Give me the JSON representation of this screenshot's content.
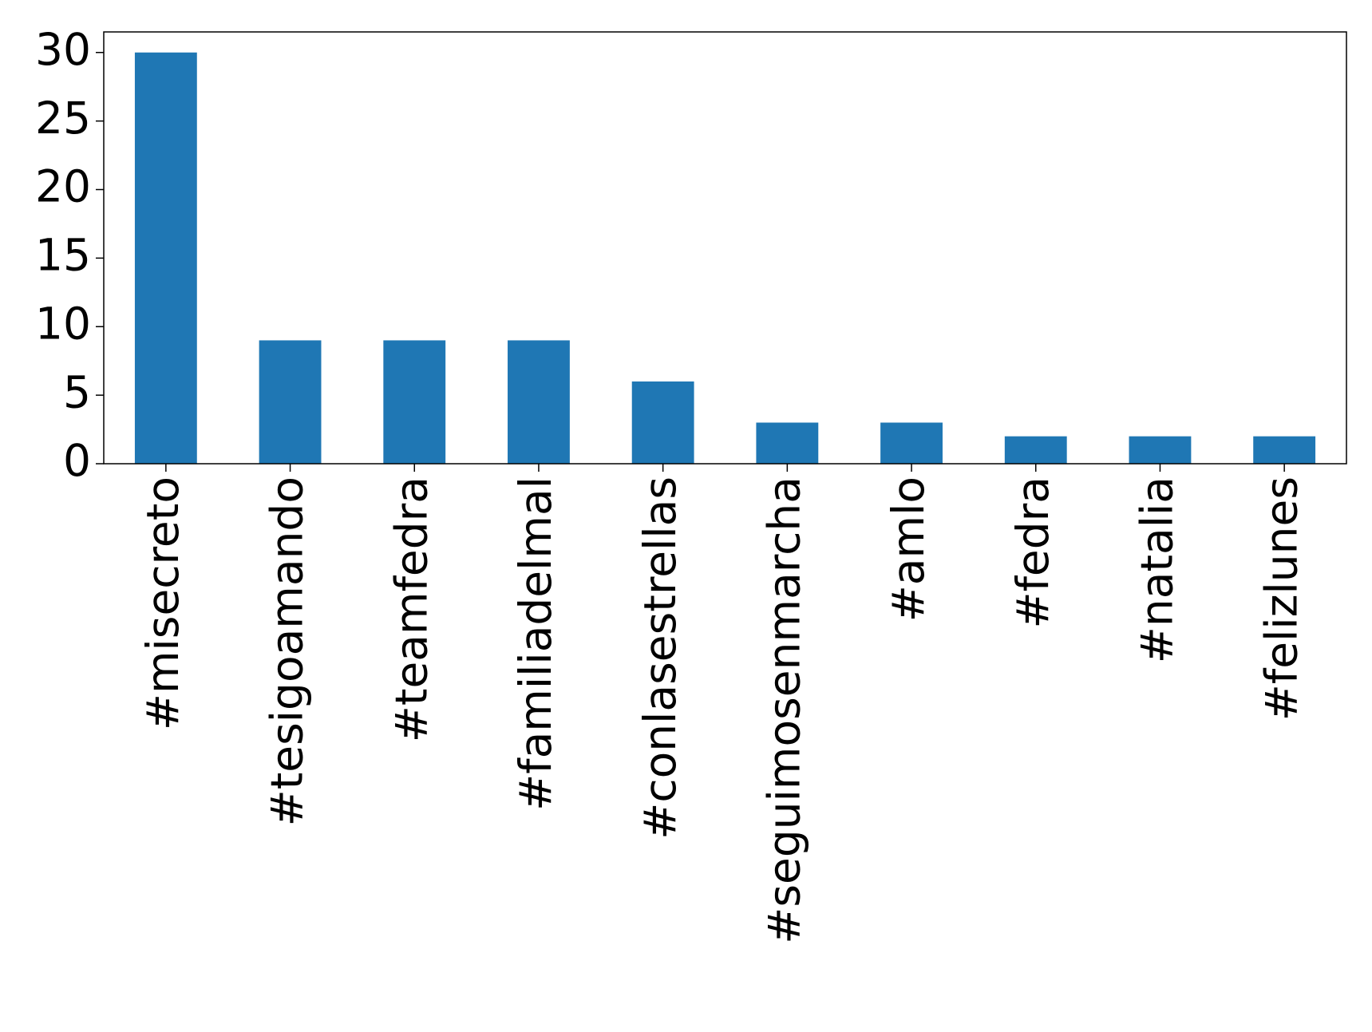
{
  "chart_data": {
    "type": "bar",
    "categories": [
      "#misecreto",
      "#tesigoamando",
      "#teamfedra",
      "#familiadelmal",
      "#conlasestrellas",
      "#seguimosenmarcha",
      "#amlo",
      "#fedra",
      "#natalia",
      "#felizlunes"
    ],
    "values": [
      30,
      9,
      9,
      9,
      6,
      3,
      3,
      2,
      2,
      2
    ],
    "color": "#1f77b4",
    "ylim": [
      0,
      31.5
    ],
    "yticks": [
      0,
      5,
      10,
      15,
      20,
      25,
      30
    ],
    "grid": false
  }
}
